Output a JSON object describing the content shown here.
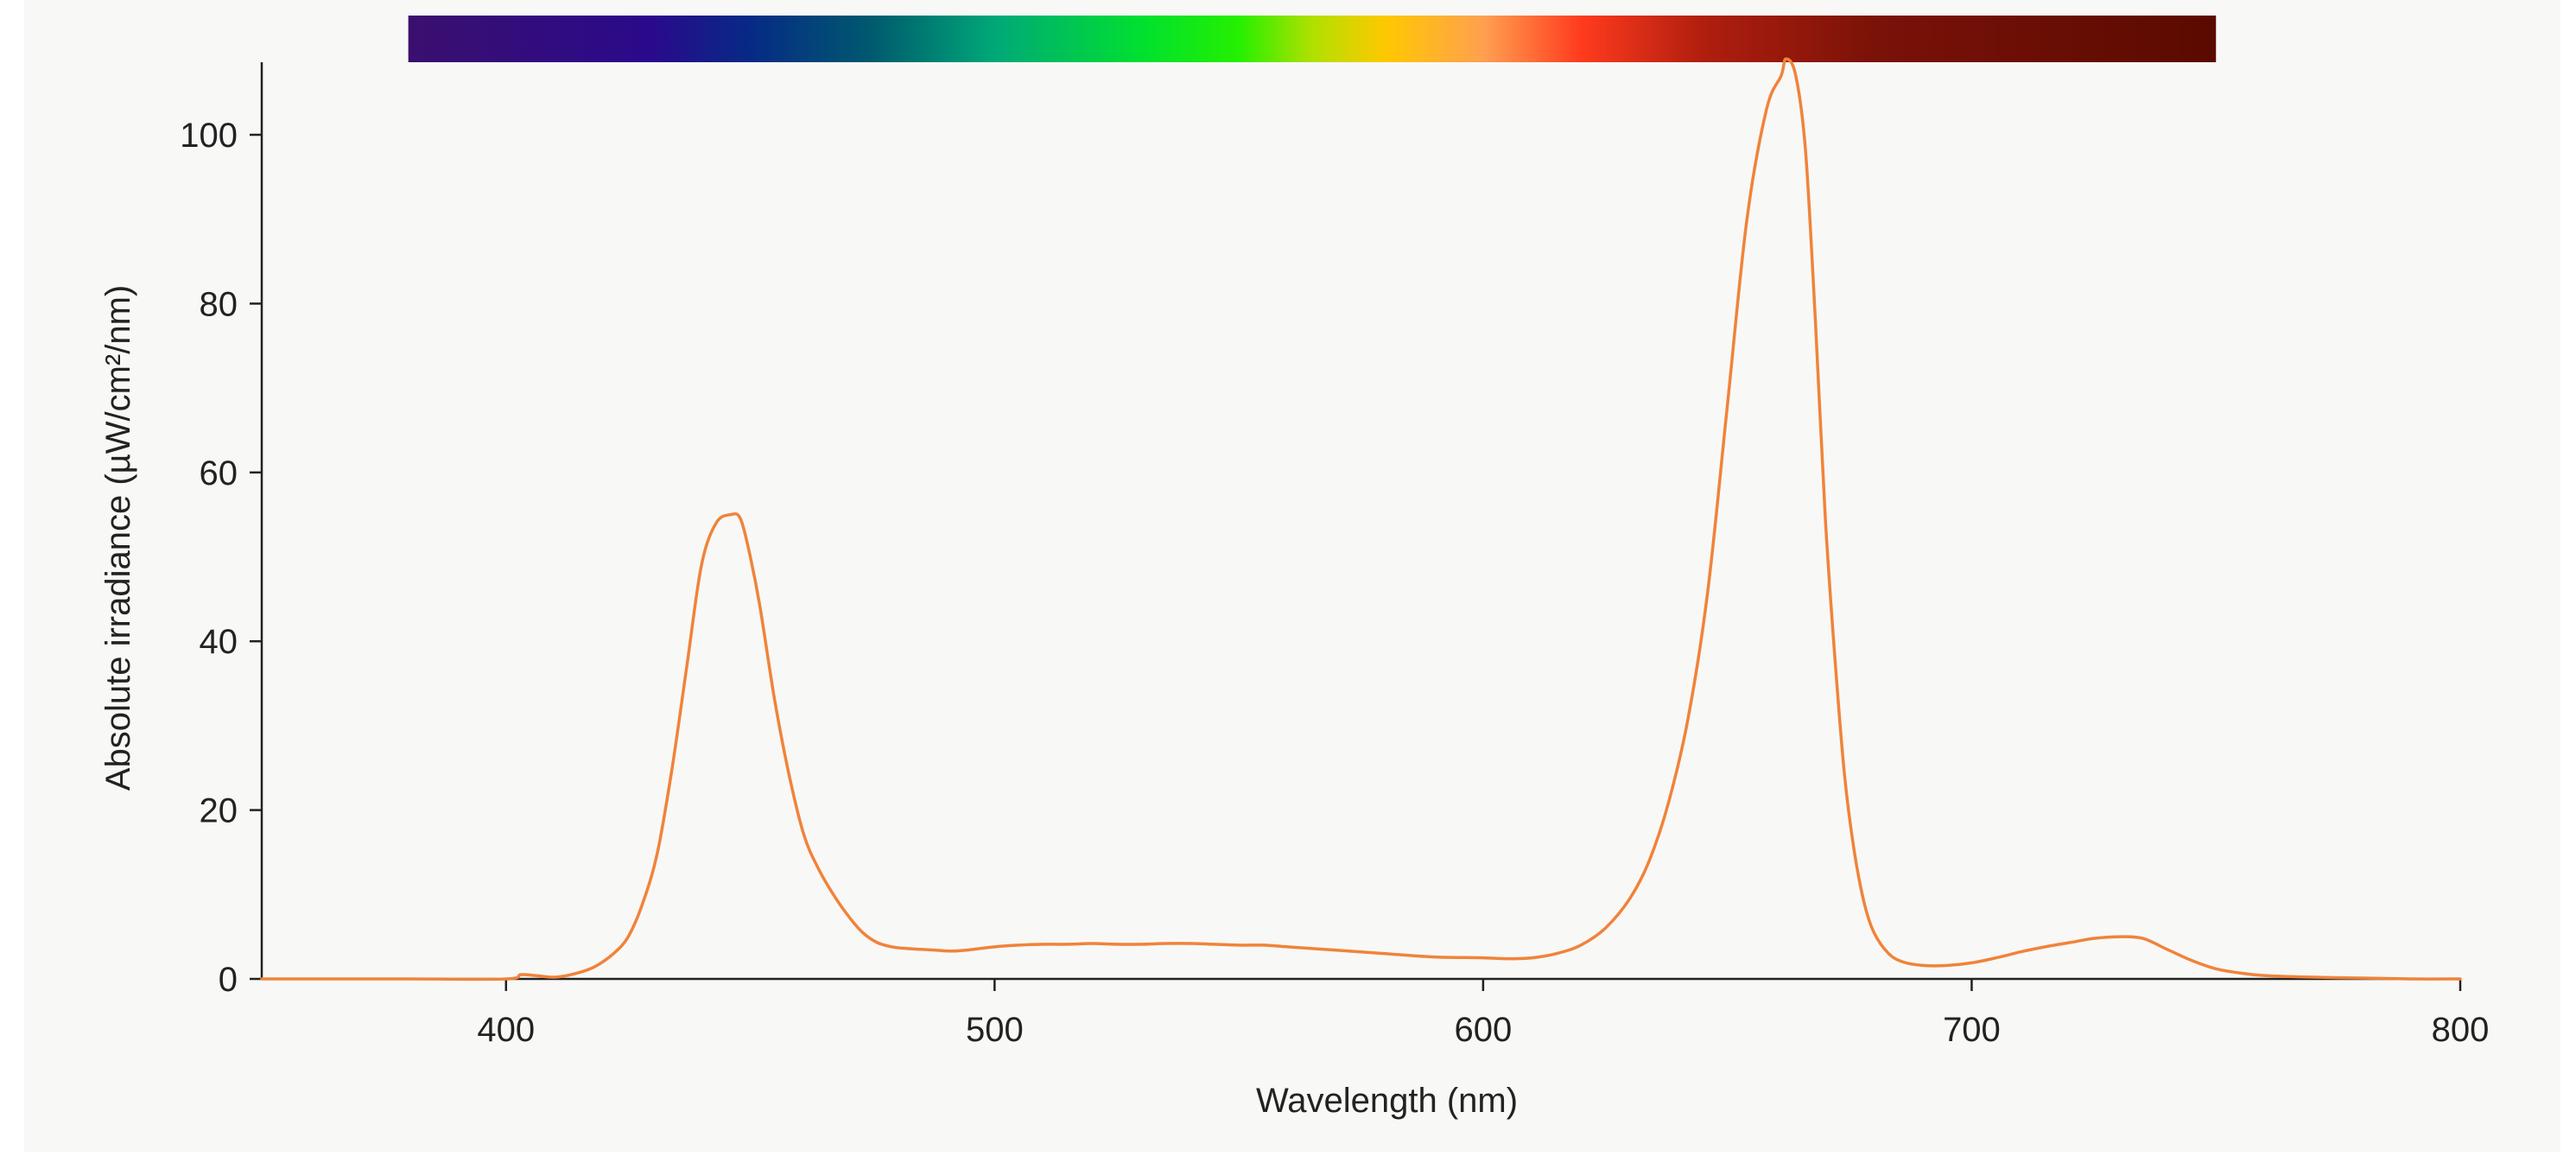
{
  "chart_data": {
    "type": "line",
    "title": "",
    "xlabel": "Wavelength (nm)",
    "ylabel": "Absolute irradiance (µW/cm²/nm)",
    "xlim": [
      350,
      800
    ],
    "ylim": [
      0,
      108
    ],
    "x_ticks": [
      400,
      500,
      600,
      700,
      800
    ],
    "y_ticks": [
      0,
      20,
      40,
      60,
      80,
      100
    ],
    "grid": false,
    "legend": "none",
    "line_color": "#f0833a",
    "spectrum_bar": {
      "range": [
        380,
        750
      ],
      "stops": [
        {
          "wl": 380,
          "color": "#3a0f6e"
        },
        {
          "wl": 430,
          "color": "#2a0a8c"
        },
        {
          "wl": 450,
          "color": "#062a85"
        },
        {
          "wl": 475,
          "color": "#005a6e"
        },
        {
          "wl": 500,
          "color": "#00a878"
        },
        {
          "wl": 530,
          "color": "#00e030"
        },
        {
          "wl": 550,
          "color": "#25f000"
        },
        {
          "wl": 565,
          "color": "#b0e000"
        },
        {
          "wl": 580,
          "color": "#ffc800"
        },
        {
          "wl": 600,
          "color": "#ffa050"
        },
        {
          "wl": 620,
          "color": "#ff3b1e"
        },
        {
          "wl": 645,
          "color": "#b01e0e"
        },
        {
          "wl": 680,
          "color": "#7a1208"
        },
        {
          "wl": 750,
          "color": "#5a0a00"
        }
      ]
    },
    "series": [
      {
        "x": [
          350,
          380,
          400,
          403,
          406,
          410,
          414,
          418,
          422,
          425,
          428,
          431,
          434,
          437,
          440,
          443,
          446,
          448,
          450,
          452,
          455,
          458,
          461,
          464,
          467,
          470,
          473,
          476,
          479,
          482,
          485,
          488,
          491,
          494,
          497,
          500,
          505,
          510,
          515,
          520,
          525,
          530,
          535,
          540,
          545,
          550,
          555,
          560,
          570,
          580,
          590,
          600,
          605,
          610,
          615,
          620,
          625,
          630,
          634,
          638,
          642,
          646,
          650,
          654,
          658,
          661,
          662,
          664,
          666,
          668,
          670,
          672,
          674,
          676,
          678,
          680,
          683,
          686,
          690,
          695,
          700,
          705,
          710,
          715,
          720,
          725,
          730,
          735,
          740,
          745,
          750,
          755,
          760,
          770,
          780,
          790,
          800
        ],
        "y": [
          0,
          0,
          0,
          0.5,
          0.4,
          0.2,
          0.6,
          1.4,
          3,
          5,
          9,
          15,
          25,
          37,
          49,
          54,
          55,
          54.5,
          50,
          44,
          33,
          24,
          17,
          13,
          10,
          7.5,
          5.5,
          4.3,
          3.8,
          3.6,
          3.5,
          3.4,
          3.3,
          3.4,
          3.6,
          3.8,
          4.0,
          4.1,
          4.1,
          4.2,
          4.1,
          4.1,
          4.2,
          4.2,
          4.1,
          4.0,
          4.0,
          3.8,
          3.4,
          3.0,
          2.6,
          2.5,
          2.4,
          2.5,
          3.0,
          4.0,
          6.0,
          9.5,
          14,
          21,
          31,
          46,
          68,
          90,
          103,
          107,
          109,
          107,
          98,
          78,
          55,
          38,
          24,
          15,
          9,
          5.5,
          3,
          2.0,
          1.6,
          1.6,
          1.9,
          2.5,
          3.2,
          3.8,
          4.3,
          4.8,
          5.0,
          4.8,
          3.5,
          2.2,
          1.2,
          0.7,
          0.4,
          0.2,
          0.1,
          0,
          0
        ]
      }
    ]
  }
}
